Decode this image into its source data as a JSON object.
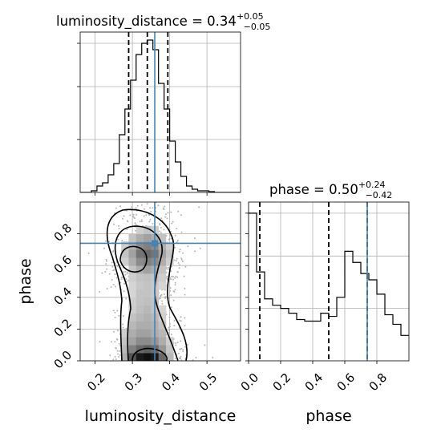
{
  "chart_data": [
    {
      "type": "histogram",
      "panel": "luminosity_distance",
      "title": {
        "prefix": "luminosity_distance = 0.34",
        "plus": "+0.05",
        "minus": "−0.05"
      },
      "xlim": [
        0.16,
        0.59
      ],
      "xticks": [
        "0.2",
        "0.3",
        "0.4",
        "0.5"
      ],
      "bins": [
        0.16,
        0.175,
        0.19,
        0.205,
        0.22,
        0.235,
        0.25,
        0.265,
        0.28,
        0.295,
        0.31,
        0.325,
        0.34,
        0.355,
        0.37,
        0.385,
        0.4,
        0.415,
        0.43,
        0.445,
        0.46,
        0.475,
        0.49,
        0.505,
        0.52,
        0.535,
        0.55,
        0.565,
        0.59
      ],
      "counts": [
        0,
        0,
        0.01,
        0.04,
        0.06,
        0.11,
        0.18,
        0.36,
        0.52,
        0.7,
        0.86,
        0.93,
        0.95,
        0.89,
        0.68,
        0.52,
        0.32,
        0.19,
        0.1,
        0.04,
        0.02,
        0.01,
        0.01,
        0.005,
        0,
        0,
        0,
        0
      ],
      "ylim": [
        0,
        1.0
      ],
      "quantiles": [
        0.29,
        0.34,
        0.395
      ],
      "truth": 0.36
    },
    {
      "type": "histogram",
      "panel": "phase",
      "title": {
        "prefix": "phase = 0.50",
        "plus": "+0.24",
        "minus": "−0.42"
      },
      "xlim": [
        0.0,
        1.0
      ],
      "xticks": [
        "0.0",
        "0.2",
        "0.4",
        "0.6",
        "0.8"
      ],
      "bins": [
        0.0,
        0.05,
        0.1,
        0.15,
        0.2,
        0.25,
        0.3,
        0.35,
        0.4,
        0.45,
        0.5,
        0.55,
        0.6,
        0.65,
        0.7,
        0.75,
        0.8,
        0.85,
        0.9,
        0.95,
        1.0
      ],
      "counts": [
        0.93,
        0.56,
        0.39,
        0.35,
        0.33,
        0.3,
        0.26,
        0.25,
        0.25,
        0.3,
        0.28,
        0.4,
        0.69,
        0.62,
        0.55,
        0.51,
        0.42,
        0.29,
        0.23,
        0.16
      ],
      "ylim": [
        0,
        1.0
      ],
      "quantiles": [
        0.07,
        0.5,
        0.74
      ],
      "truth": 0.74
    },
    {
      "type": "heatmap",
      "panel": "luminosity_distance vs phase",
      "xlabel": "luminosity_distance",
      "ylabel": "phase",
      "xlim": [
        0.16,
        0.59
      ],
      "ylim": [
        0.0,
        1.0
      ],
      "xticks": [
        "0.2",
        "0.3",
        "0.4",
        "0.5"
      ],
      "yticks": [
        "0.0",
        "0.2",
        "0.4",
        "0.6",
        "0.8"
      ],
      "truth": {
        "x": 0.36,
        "y": 0.74
      },
      "x_edges": [
        0.27,
        0.29,
        0.31,
        0.33,
        0.35,
        0.37,
        0.39,
        0.41
      ],
      "y_edges": [
        0.0,
        0.05,
        0.1,
        0.15,
        0.2,
        0.25,
        0.3,
        0.35,
        0.4,
        0.45,
        0.5,
        0.55,
        0.6,
        0.65,
        0.7,
        0.75,
        0.8,
        0.85,
        0.9
      ],
      "density": [
        [
          0.3,
          0.7,
          0.95,
          1.0,
          0.95,
          0.6,
          0.25
        ],
        [
          0.25,
          0.5,
          0.6,
          0.65,
          0.6,
          0.4,
          0.2
        ],
        [
          0.2,
          0.35,
          0.45,
          0.45,
          0.4,
          0.3,
          0.15
        ],
        [
          0.15,
          0.3,
          0.35,
          0.35,
          0.3,
          0.25,
          0.1
        ],
        [
          0.1,
          0.25,
          0.3,
          0.3,
          0.28,
          0.2,
          0.1
        ],
        [
          0.05,
          0.2,
          0.25,
          0.28,
          0.25,
          0.15,
          0.05
        ],
        [
          0.05,
          0.15,
          0.22,
          0.25,
          0.2,
          0.12,
          0.05
        ],
        [
          0.05,
          0.15,
          0.2,
          0.22,
          0.2,
          0.1,
          0.05
        ],
        [
          0.05,
          0.12,
          0.2,
          0.2,
          0.18,
          0.1,
          0.05
        ],
        [
          0.05,
          0.12,
          0.18,
          0.2,
          0.18,
          0.12,
          0.05
        ],
        [
          0.05,
          0.15,
          0.2,
          0.22,
          0.2,
          0.15,
          0.05
        ],
        [
          0.1,
          0.2,
          0.3,
          0.35,
          0.3,
          0.2,
          0.1
        ],
        [
          0.15,
          0.3,
          0.45,
          0.5,
          0.45,
          0.3,
          0.15
        ],
        [
          0.2,
          0.35,
          0.55,
          0.6,
          0.55,
          0.35,
          0.2
        ],
        [
          0.15,
          0.3,
          0.45,
          0.5,
          0.45,
          0.3,
          0.15
        ],
        [
          0.1,
          0.2,
          0.3,
          0.35,
          0.3,
          0.2,
          0.1
        ],
        [
          0.05,
          0.1,
          0.15,
          0.2,
          0.15,
          0.1,
          0.05
        ],
        [
          0.02,
          0.05,
          0.08,
          0.1,
          0.08,
          0.05,
          0.02
        ]
      ]
    }
  ]
}
